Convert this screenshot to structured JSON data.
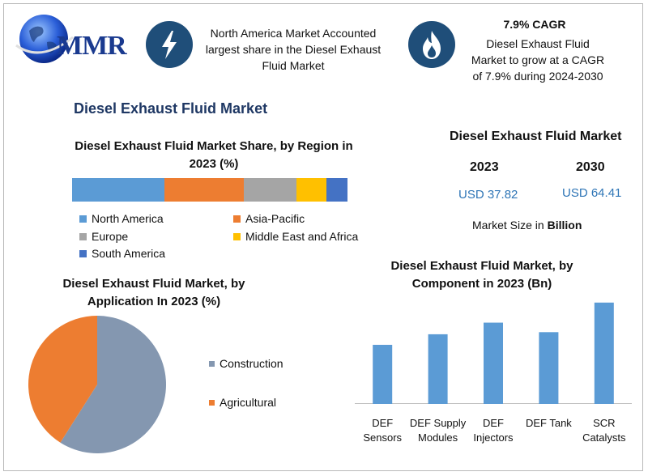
{
  "logo": {
    "text": "MMR"
  },
  "header": {
    "left_text": "North America Market Accounted largest share in the Diesel Exhaust Fluid Market",
    "left_icon": "lightning-icon",
    "right_icon": "flame-icon",
    "cagr_title": "7.9% CAGR",
    "cagr_text": "Diesel Exhaust Fluid Market to grow at a CAGR of 7.9% during 2024-2030"
  },
  "main_title": "Diesel Exhaust Fluid Market",
  "market_size": {
    "title": "Diesel Exhaust Fluid Market",
    "year1": "2023",
    "year2": "2030",
    "value1": "USD 37.82",
    "value2": "USD 64.41",
    "unit_prefix": "Market Size in",
    "unit_bold": "Billion"
  },
  "colors": {
    "blue": "#5b9bd5",
    "orange": "#ed7d31",
    "gray": "#a5a5a5",
    "yellow": "#ffc000",
    "darkblue": "#4472c4",
    "pie_gray": "#8497b0",
    "navy": "#1f4e79"
  },
  "chart_data": [
    {
      "type": "bar",
      "stacked": true,
      "orientation": "horizontal",
      "title": "Diesel Exhaust Fluid Market Share, by Region in 2023 (%)",
      "series": [
        {
          "name": "North America",
          "values": [
            33.5
          ],
          "color": "#5b9bd5"
        },
        {
          "name": "Asia-Pacific",
          "values": [
            29
          ],
          "color": "#ed7d31"
        },
        {
          "name": "Europe",
          "values": [
            19
          ],
          "color": "#a5a5a5"
        },
        {
          "name": "Middle East and Africa",
          "values": [
            11
          ],
          "color": "#ffc000"
        },
        {
          "name": "South America",
          "values": [
            7.5
          ],
          "color": "#4472c4"
        }
      ],
      "legend": "bottom"
    },
    {
      "type": "pie",
      "title": "Diesel Exhaust Fluid Market, by Application In 2023 (%)",
      "categories": [
        "Construction",
        "Agricultural"
      ],
      "values": [
        59,
        41
      ],
      "colors": [
        "#8497b0",
        "#ed7d31"
      ],
      "legend": "right"
    },
    {
      "type": "bar",
      "title": "Diesel Exhaust Fluid Market, by Component in 2023 (Bn)",
      "categories": [
        "DEF Sensors",
        "DEF Supply Modules",
        "DEF Injectors",
        "DEF Tank",
        "SCR Catalysts"
      ],
      "values": [
        5.6,
        6.6,
        7.7,
        6.8,
        9.6
      ],
      "color": "#5b9bd5",
      "ylim": [
        0,
        11.5
      ]
    }
  ]
}
